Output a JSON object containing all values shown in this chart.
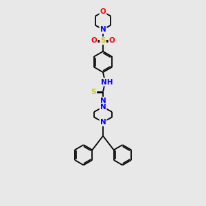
{
  "bg_color": "#e8e8e8",
  "atom_colors": {
    "C": "#000000",
    "N": "#0000ff",
    "O": "#ff0000",
    "S": "#cccc00",
    "H": "#008080"
  },
  "bond_color": "#000000",
  "bond_width": 1.3,
  "font_size_atom": 7.5,
  "fig_width": 3.0,
  "fig_height": 3.0,
  "xlim": [
    2.5,
    7.5
  ],
  "ylim": [
    0.5,
    14.5
  ]
}
